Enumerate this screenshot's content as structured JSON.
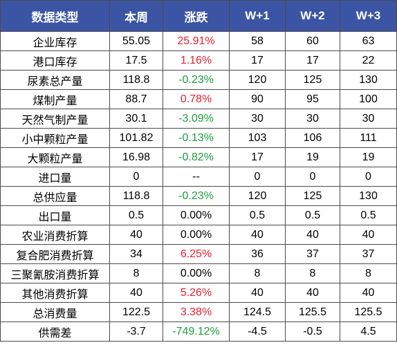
{
  "table": {
    "headers": [
      "数据类型",
      "本周",
      "涨跌",
      "W+1",
      "W+2",
      "W+3"
    ],
    "rows": [
      {
        "name": "企业库存",
        "week": "55.05",
        "change": "25.91%",
        "trend": "up",
        "w1": "58",
        "w2": "60",
        "w3": "63"
      },
      {
        "name": "港口库存",
        "week": "17.5",
        "change": "1.16%",
        "trend": "up",
        "w1": "17",
        "w2": "17",
        "w3": "22"
      },
      {
        "name": "尿素总产量",
        "week": "118.8",
        "change": "-0.23%",
        "trend": "down",
        "w1": "120",
        "w2": "125",
        "w3": "130"
      },
      {
        "name": "煤制产量",
        "week": "88.7",
        "change": "0.78%",
        "trend": "up",
        "w1": "90",
        "w2": "95",
        "w3": "100"
      },
      {
        "name": "天然气制产量",
        "week": "30.1",
        "change": "-3.09%",
        "trend": "down",
        "w1": "30",
        "w2": "30",
        "w3": "30"
      },
      {
        "name": "小中颗粒产量",
        "week": "101.82",
        "change": "-0.13%",
        "trend": "down",
        "w1": "103",
        "w2": "106",
        "w3": "111"
      },
      {
        "name": "大颗粒产量",
        "week": "16.98",
        "change": "-0.82%",
        "trend": "down",
        "w1": "17",
        "w2": "19",
        "w3": "19"
      },
      {
        "name": "进口量",
        "week": "0",
        "change": "--",
        "trend": "flat",
        "w1": "0",
        "w2": "0",
        "w3": "0"
      },
      {
        "name": "总供应量",
        "week": "118.8",
        "change": "-0.23%",
        "trend": "down",
        "w1": "120",
        "w2": "125",
        "w3": "130"
      },
      {
        "name": "出口量",
        "week": "0.5",
        "change": "0.00%",
        "trend": "flat",
        "w1": "0.5",
        "w2": "0.5",
        "w3": "0.5"
      },
      {
        "name": "农业消费折算",
        "week": "40",
        "change": "0.00%",
        "trend": "flat",
        "w1": "40",
        "w2": "40",
        "w3": "40"
      },
      {
        "name": "复合肥消费折算",
        "week": "34",
        "change": "6.25%",
        "trend": "up",
        "w1": "36",
        "w2": "37",
        "w3": "37"
      },
      {
        "name": "三聚氰胺消费折算",
        "week": "8",
        "change": "0.00%",
        "trend": "flat",
        "w1": "8",
        "w2": "8",
        "w3": "8"
      },
      {
        "name": "其他消费折算",
        "week": "40",
        "change": "5.26%",
        "trend": "up",
        "w1": "40",
        "w2": "40",
        "w3": "40"
      },
      {
        "name": "总消费量",
        "week": "122.5",
        "change": "3.38%",
        "trend": "up",
        "w1": "124.5",
        "w2": "125.5",
        "w3": "125.5"
      },
      {
        "name": "供需差",
        "week": "-3.7",
        "change": "-749.12%",
        "trend": "down",
        "w1": "-4.5",
        "w2": "-0.5",
        "w3": "4.5"
      }
    ]
  }
}
